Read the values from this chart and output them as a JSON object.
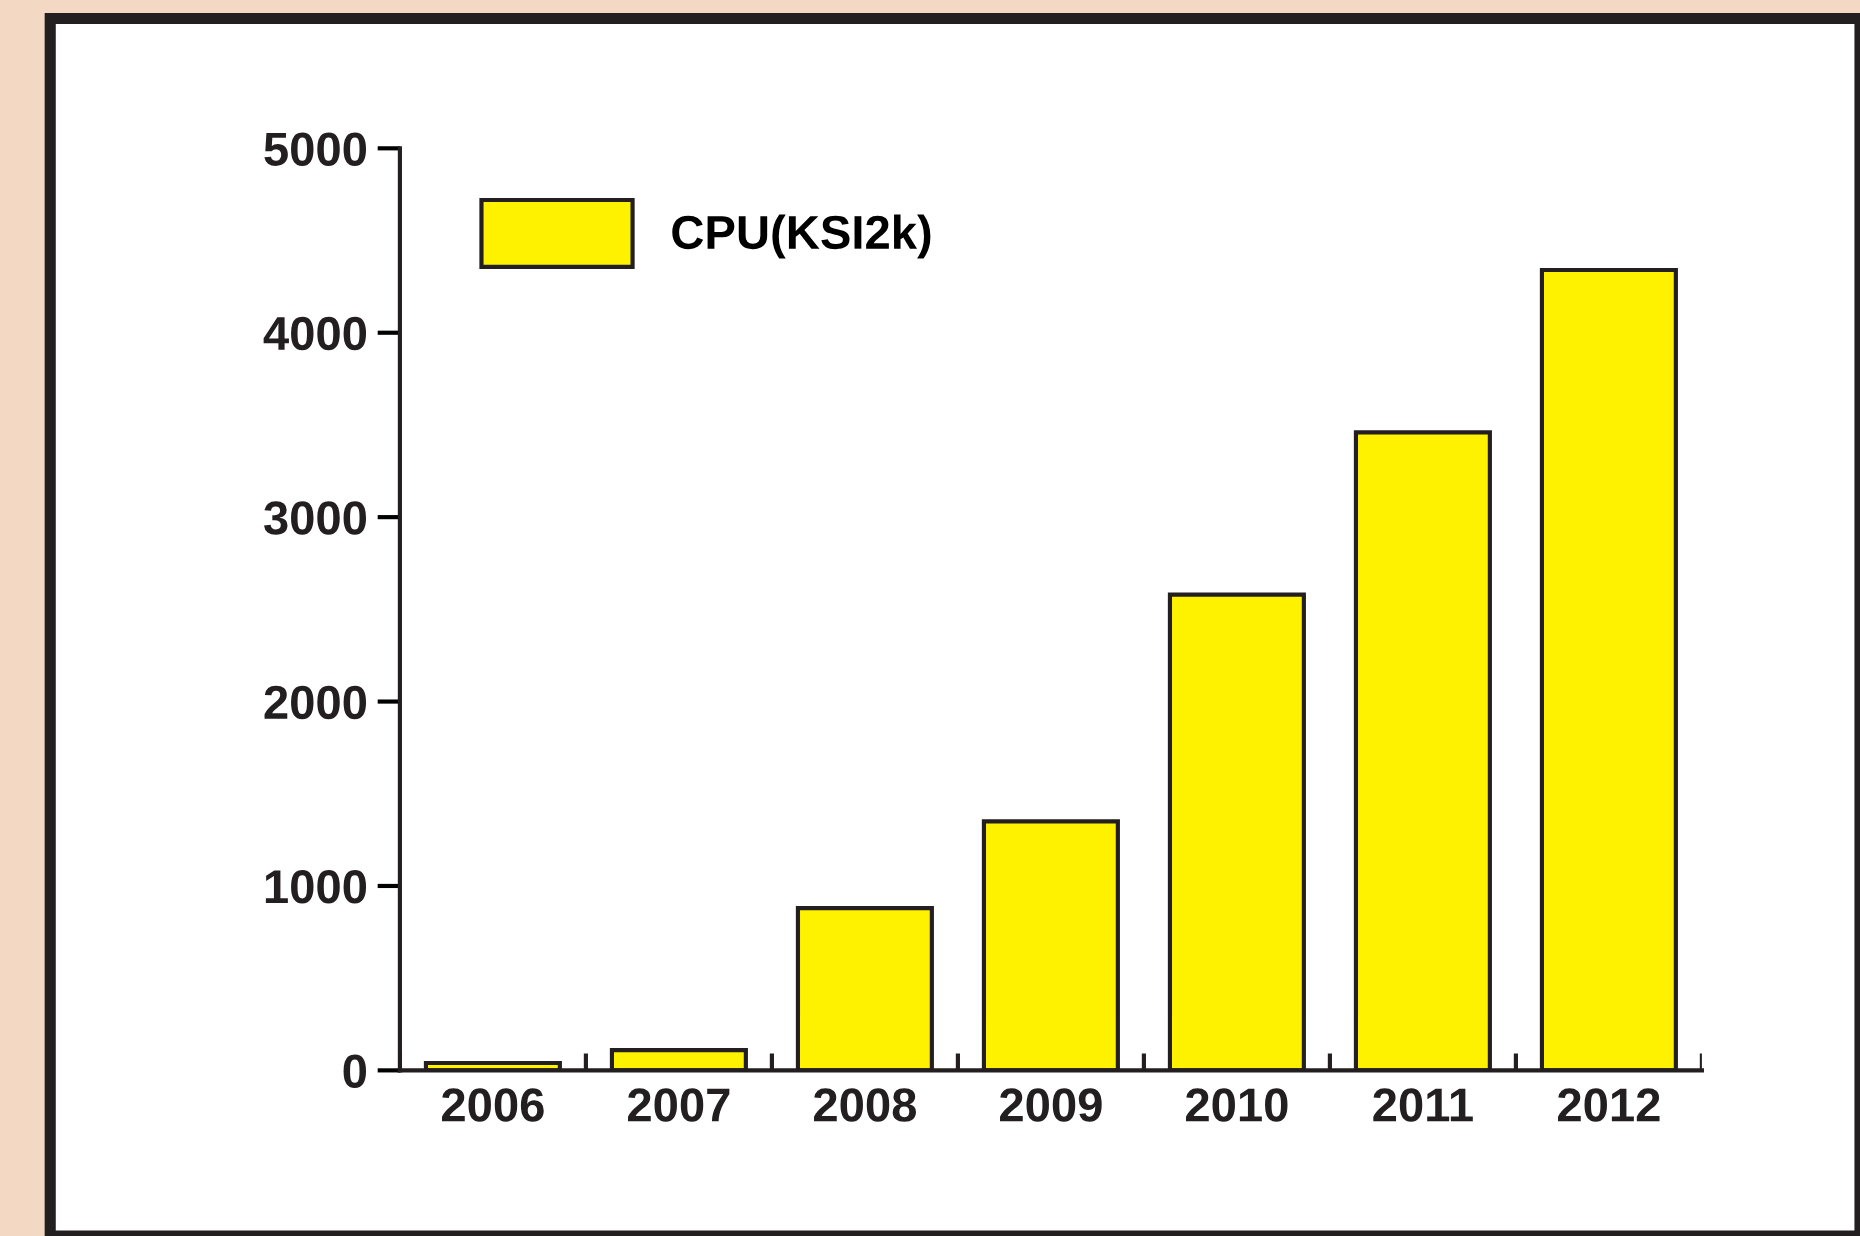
{
  "chart_data": {
    "type": "bar",
    "categories": [
      "2006",
      "2007",
      "2008",
      "2009",
      "2010",
      "2011",
      "2012"
    ],
    "series": [
      {
        "name": "CPU(KSI2k)",
        "color": "#fff200",
        "values": [
          40,
          110,
          880,
          1350,
          2580,
          3460,
          4340
        ]
      }
    ],
    "ylim": [
      0,
      5000
    ],
    "yticks": [
      0,
      1000,
      2000,
      3000,
      4000,
      5000
    ],
    "grid": false,
    "legend": "top left"
  }
}
